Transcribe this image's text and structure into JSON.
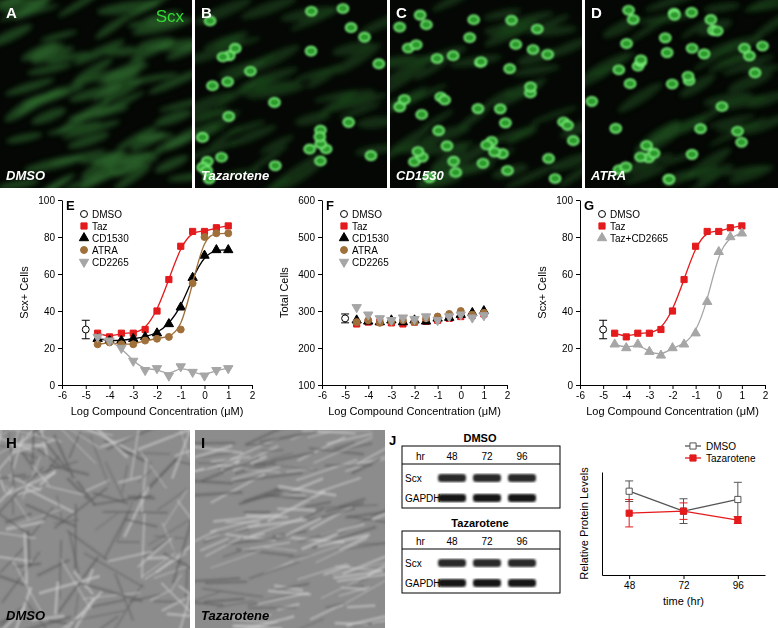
{
  "chart_data": [
    {
      "panel": "E",
      "type": "scatter",
      "x_label": "Log Compound Concentration (μM)",
      "y_label": "Scx+ Cells",
      "xlim": [
        -6,
        2
      ],
      "xticks": [
        -6,
        -5,
        -4,
        -3,
        -2,
        -1,
        0,
        1,
        2
      ],
      "ylim": [
        0,
        100
      ],
      "yticks": [
        0,
        20,
        40,
        60,
        80,
        100
      ],
      "line_style": "smooth",
      "legend": "top-left",
      "series": [
        {
          "name": "DMSO",
          "color": "#000000",
          "marker": "circle-open",
          "line_style": "none",
          "x": [
            -5
          ],
          "values": [
            30
          ],
          "errors": [
            5
          ]
        },
        {
          "name": "Taz",
          "color": "#e41a1c",
          "marker": "square",
          "x": [
            -4.5,
            -4,
            -3.5,
            -3,
            -2.5,
            -2,
            -1.5,
            -1,
            -0.5,
            0,
            0.5,
            1
          ],
          "values": [
            28,
            26,
            28,
            28,
            30,
            40,
            57,
            75,
            83,
            83,
            85,
            86
          ]
        },
        {
          "name": "CD1530",
          "color": "#000000",
          "marker": "triangle-up",
          "x": [
            -4.5,
            -4,
            -3.5,
            -3,
            -2.5,
            -2,
            -1.5,
            -1,
            -0.5,
            0,
            0.5,
            1
          ],
          "values": [
            25,
            24,
            24,
            25,
            26,
            28,
            33,
            42,
            58,
            70,
            73,
            73
          ]
        },
        {
          "name": "ATRA",
          "color": "#a0703a",
          "marker": "circle",
          "x": [
            -4.5,
            -4,
            -3.5,
            -3,
            -2.5,
            -2,
            -1.5,
            -1,
            -0.5,
            0,
            0.5,
            1
          ],
          "values": [
            22,
            23,
            22,
            22,
            24,
            25,
            26,
            30,
            55,
            80,
            82,
            82
          ]
        },
        {
          "name": "CD2265",
          "color": "#a6a6a6",
          "marker": "triangle-down",
          "x": [
            -4.5,
            -4,
            -3.5,
            -3,
            -2.5,
            -2,
            -1.5,
            -1,
            -0.5,
            0,
            0.5,
            1
          ],
          "values": [
            26,
            24,
            20,
            13,
            8,
            9,
            5,
            10,
            7,
            5,
            8,
            9
          ]
        }
      ]
    },
    {
      "panel": "F",
      "type": "scatter",
      "x_label": "Log Compound Concentration (μM)",
      "y_label": "Total Cells",
      "xlim": [
        -6,
        2
      ],
      "xticks": [
        -6,
        -5,
        -4,
        -3,
        -2,
        -1,
        0,
        1,
        2
      ],
      "ylim": [
        100,
        600
      ],
      "yticks": [
        100,
        200,
        300,
        400,
        500,
        600
      ],
      "line_style": "none",
      "legend": "top-left",
      "series": [
        {
          "name": "DMSO",
          "color": "#000000",
          "marker": "circle-open",
          "x": [
            -5
          ],
          "values": [
            280
          ],
          "errors": [
            12
          ]
        },
        {
          "name": "Taz",
          "color": "#e41a1c",
          "marker": "square",
          "x": [
            -4.5,
            -4,
            -3.5,
            -3,
            -2.5,
            -2,
            -1.5,
            -1,
            -0.5,
            0,
            0.5,
            1
          ],
          "values": [
            265,
            270,
            270,
            268,
            265,
            270,
            272,
            275,
            280,
            285,
            288,
            292
          ]
        },
        {
          "name": "CD1530",
          "color": "#000000",
          "marker": "triangle-up",
          "x": [
            -4.5,
            -4,
            -3.5,
            -3,
            -2.5,
            -2,
            -1.5,
            -1,
            -0.5,
            0,
            0.5,
            1
          ],
          "values": [
            275,
            272,
            270,
            275,
            270,
            275,
            272,
            280,
            282,
            290,
            295,
            300
          ]
        },
        {
          "name": "ATRA",
          "color": "#a0703a",
          "marker": "circle",
          "x": [
            -4.5,
            -4,
            -3.5,
            -3,
            -2.5,
            -2,
            -1.5,
            -1,
            -0.5,
            0,
            0.5,
            1
          ],
          "values": [
            270,
            275,
            268,
            272,
            275,
            270,
            280,
            285,
            292,
            300,
            290,
            295
          ]
        },
        {
          "name": "CD2265",
          "color": "#a6a6a6",
          "marker": "triangle-down",
          "x": [
            -4.5,
            -4,
            -3.5,
            -3,
            -2.5,
            -2,
            -1.5,
            -1,
            -0.5,
            0,
            0.5,
            1
          ],
          "values": [
            310,
            290,
            280,
            275,
            282,
            278,
            285,
            275,
            285,
            290,
            282,
            288
          ]
        }
      ]
    },
    {
      "panel": "G",
      "type": "scatter",
      "x_label": "Log Compound Concentration (μM)",
      "y_label": "Scx+ Cells",
      "xlim": [
        -6,
        2
      ],
      "xticks": [
        -6,
        -5,
        -4,
        -3,
        -2,
        -1,
        0,
        1,
        2
      ],
      "ylim": [
        0,
        100
      ],
      "yticks": [
        0,
        20,
        40,
        60,
        80,
        100
      ],
      "line_style": "smooth",
      "legend": "top-left",
      "series": [
        {
          "name": "DMSO",
          "color": "#000000",
          "marker": "circle-open",
          "line_style": "none",
          "x": [
            -5
          ],
          "values": [
            30
          ],
          "errors": [
            5
          ]
        },
        {
          "name": "Taz",
          "color": "#e41a1c",
          "marker": "square",
          "x": [
            -4.5,
            -4,
            -3.5,
            -3,
            -2.5,
            -2,
            -1.5,
            -1,
            -0.5,
            0,
            0.5,
            1
          ],
          "values": [
            28,
            26,
            28,
            28,
            30,
            40,
            57,
            75,
            83,
            83,
            85,
            86
          ]
        },
        {
          "name": "Taz+CD2665",
          "color": "#a6a6a6",
          "marker": "triangle-up",
          "x": [
            -4.5,
            -4,
            -3.5,
            -3,
            -2.5,
            -2,
            -1.5,
            -1,
            -0.5,
            0,
            0.5,
            1
          ],
          "values": [
            22,
            20,
            22,
            18,
            16,
            20,
            22,
            28,
            45,
            72,
            80,
            82
          ]
        }
      ]
    },
    {
      "type": "line",
      "x_label": "time (hr)",
      "y_label": "Relative Protein Levels",
      "xlim": [
        36,
        108
      ],
      "xticks": [
        48,
        72,
        96
      ],
      "ylim": [
        0,
        1.5
      ],
      "tick_labels": "x",
      "line_style": "solid",
      "legend": "top-right",
      "series": [
        {
          "name": "DMSO",
          "color": "#555555",
          "marker": "square-open",
          "x": [
            48,
            72,
            96
          ],
          "values": [
            1.22,
            0.93,
            1.1
          ],
          "errors": [
            0.15,
            0.18,
            0.25
          ]
        },
        {
          "name": "Tazarotene",
          "color": "#e41a1c",
          "marker": "square",
          "x": [
            48,
            72,
            96
          ],
          "values": [
            0.9,
            0.93,
            0.8
          ],
          "errors": [
            0.2,
            0.12,
            0.05
          ]
        }
      ]
    }
  ],
  "images": [
    {
      "panel": "A",
      "stain": "Scx",
      "label": "DMSO"
    },
    {
      "panel": "B",
      "label": "Tazarotene"
    },
    {
      "panel": "C",
      "label": "CD1530"
    },
    {
      "panel": "D",
      "label": "ATRA"
    },
    {
      "panel": "H",
      "label": "DMSO"
    },
    {
      "panel": "I",
      "label": "Tazarotene"
    }
  ],
  "blot": {
    "panel": "J",
    "groups": [
      {
        "title": "DMSO",
        "hr_label": "hr",
        "times": [
          "48",
          "72",
          "96"
        ],
        "rows": [
          "Scx",
          "GAPDH"
        ]
      },
      {
        "title": "Tazarotene",
        "hr_label": "hr",
        "times": [
          "48",
          "72",
          "96"
        ],
        "rows": [
          "Scx",
          "GAPDH"
        ]
      }
    ]
  }
}
